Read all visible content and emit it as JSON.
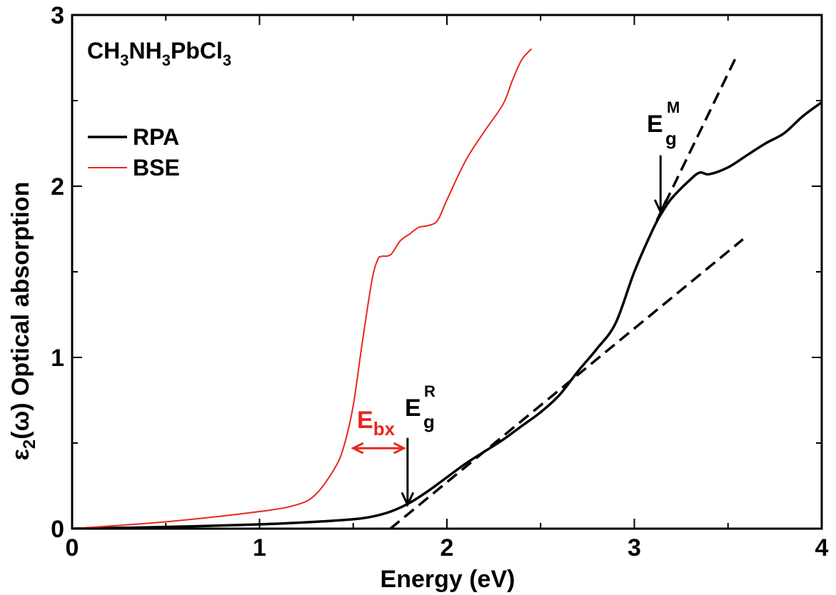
{
  "chart_data": {
    "type": "line",
    "title": "CH3NH3PbCl3",
    "title_parts": {
      "main": "CH",
      "s1": "3",
      "m2": "NH",
      "s2": "3",
      "m3": "PbCl",
      "s3": "3"
    },
    "xlabel": "Energy (eV)",
    "ylabel_parts": {
      "eps": "ε",
      "sub": "2",
      "rest": "(ω) Optical absorption"
    },
    "xlim": [
      0,
      4
    ],
    "ylim": [
      0,
      3
    ],
    "x_ticks": [
      "0",
      "1",
      "2",
      "3",
      "4"
    ],
    "y_ticks": [
      "0",
      "1",
      "2",
      "3"
    ],
    "legend_position": "upper-left",
    "series": [
      {
        "name": "RPA",
        "color": "#000000",
        "x": [
          0,
          0.5,
          1.0,
          1.3,
          1.5,
          1.6,
          1.7,
          1.8,
          1.9,
          2.0,
          2.1,
          2.2,
          2.3,
          2.4,
          2.5,
          2.6,
          2.7,
          2.8,
          2.9,
          3.0,
          3.1,
          3.15,
          3.2,
          3.3,
          3.35,
          3.4,
          3.5,
          3.6,
          3.7,
          3.8,
          3.9,
          4.0
        ],
        "y": [
          0,
          0.01,
          0.025,
          0.04,
          0.055,
          0.07,
          0.1,
          0.15,
          0.22,
          0.3,
          0.38,
          0.45,
          0.52,
          0.6,
          0.68,
          0.78,
          0.92,
          1.05,
          1.2,
          1.5,
          1.75,
          1.85,
          1.93,
          2.04,
          2.08,
          2.07,
          2.11,
          2.18,
          2.25,
          2.31,
          2.41,
          2.49
        ]
      },
      {
        "name": "BSE",
        "color": "#e8271e",
        "x": [
          0,
          0.5,
          1.0,
          1.2,
          1.3,
          1.4,
          1.45,
          1.5,
          1.55,
          1.6,
          1.63,
          1.65,
          1.7,
          1.75,
          1.8,
          1.85,
          1.9,
          1.95,
          2.0,
          2.1,
          2.2,
          2.3,
          2.35,
          2.4,
          2.45
        ],
        "y": [
          0,
          0.04,
          0.1,
          0.14,
          0.2,
          0.35,
          0.48,
          0.72,
          1.1,
          1.45,
          1.57,
          1.59,
          1.6,
          1.68,
          1.72,
          1.76,
          1.77,
          1.8,
          1.92,
          2.15,
          2.32,
          2.48,
          2.62,
          2.74,
          2.8
        ]
      }
    ],
    "fit_lines": [
      {
        "x": [
          1.62,
          3.58
        ],
        "y": [
          -0.07,
          1.69
        ]
      },
      {
        "x": [
          3.12,
          3.55
        ],
        "y": [
          1.8,
          2.77
        ]
      }
    ],
    "annotations": {
      "eg_r": {
        "base": "E",
        "sub": "g",
        "sup": "R",
        "x": 1.79,
        "y_from": 0.53,
        "y_to": 0.14
      },
      "eg_m": {
        "base": "E",
        "sub": "g",
        "sup": "M",
        "x": 3.14,
        "y_from": 2.18,
        "y_to": 1.85
      },
      "ebx": {
        "base": "E",
        "sub": "bx",
        "color": "#e8271e",
        "x_from": 1.5,
        "x_to": 1.77,
        "y": 0.47
      }
    }
  }
}
